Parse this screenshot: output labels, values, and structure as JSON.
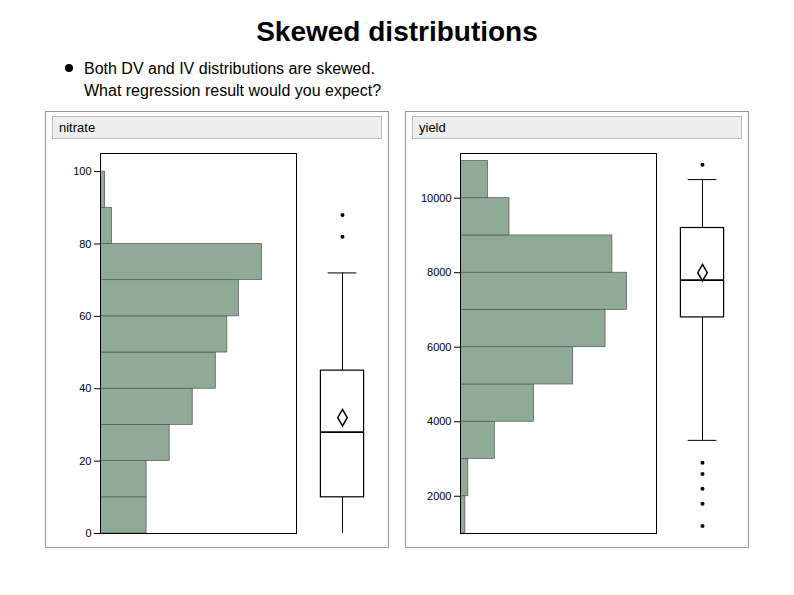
{
  "title": "Skewed distributions",
  "annotations": [
    "Both DV and IV distributions are skewed.",
    "What regression result would you expect?"
  ],
  "chart_data": [
    {
      "type": "histogram",
      "title": "nitrate",
      "orientation": "horizontal",
      "bins": [
        0,
        10,
        20,
        30,
        40,
        50,
        60,
        70,
        80,
        90,
        100
      ],
      "values": [
        20,
        20,
        30,
        40,
        50,
        55,
        60,
        70,
        5,
        2
      ],
      "color": "#8faa96",
      "ylim": [
        0,
        105
      ],
      "yticks": [
        0,
        20,
        40,
        60,
        80,
        100
      ],
      "xlim": [
        0,
        85
      ],
      "tick_labels": "y",
      "boxplot": {
        "min": 0,
        "q1": 10,
        "median": 28,
        "q3": 45,
        "max": 72,
        "mean": 32,
        "outliers": [
          82,
          88
        ]
      }
    },
    {
      "type": "histogram",
      "title": "yield",
      "orientation": "horizontal",
      "bins": [
        1000,
        2000,
        3000,
        4000,
        5000,
        6000,
        7000,
        8000,
        9000,
        10000,
        11000
      ],
      "values": [
        5,
        8,
        35,
        75,
        115,
        148,
        170,
        155,
        50,
        28
      ],
      "color": "#8faa96",
      "ylim": [
        1000,
        11200
      ],
      "yticks": [
        2000,
        4000,
        6000,
        8000,
        10000
      ],
      "xlim": [
        0,
        200
      ],
      "tick_labels": "y",
      "boxplot": {
        "min": 3500,
        "q1": 6800,
        "median": 7800,
        "q3": 9200,
        "max": 10500,
        "mean": 8000,
        "outliers": [
          10900,
          1200,
          1800,
          2200,
          2600,
          2900
        ]
      }
    }
  ]
}
